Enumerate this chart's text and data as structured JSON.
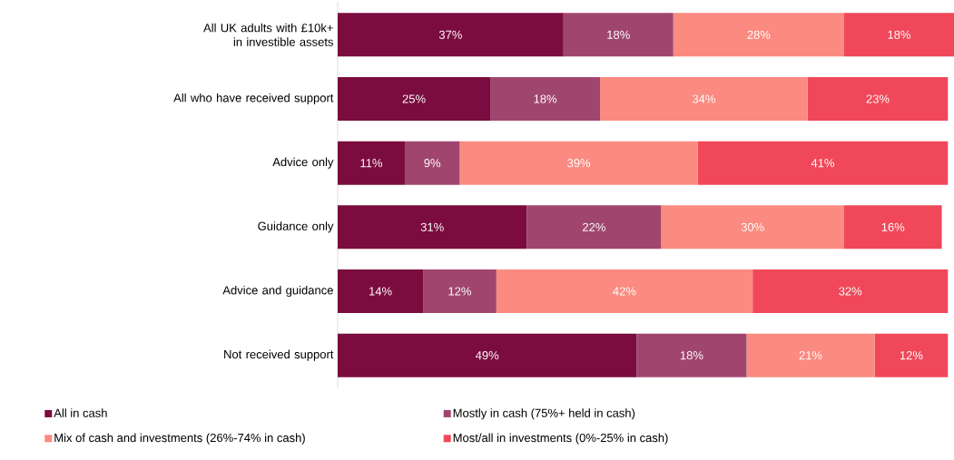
{
  "chart_data": {
    "type": "bar",
    "orientation": "horizontal",
    "stacked": true,
    "categories": [
      "All UK adults with £10k+ in investible assets",
      "All who have received support",
      "Advice only",
      "Guidance only",
      "Advice and guidance",
      "Not received support"
    ],
    "series": [
      {
        "name": "All in cash",
        "color": "#7b0c3f",
        "values": [
          37,
          25,
          11,
          31,
          14,
          49
        ],
        "value_labels": [
          "37%",
          "25%",
          "11%",
          "31%",
          "14%",
          "49%"
        ]
      },
      {
        "name": "Mostly in cash (75%+ held in cash)",
        "color": "#a0466e",
        "values": [
          18,
          18,
          9,
          22,
          12,
          18
        ],
        "value_labels": [
          "18%",
          "18%",
          "9%",
          "22%",
          "12%",
          "18%"
        ]
      },
      {
        "name": "Mix of cash and investments (26%-74% in cash)",
        "color": "#fb8a80",
        "values": [
          28,
          34,
          39,
          30,
          42,
          21
        ],
        "value_labels": [
          "28%",
          "34%",
          "39%",
          "30%",
          "42%",
          "21%"
        ]
      },
      {
        "name": "Most/all in investments (0%-25% in cash)",
        "color": "#f0485a",
        "values": [
          18,
          23,
          41,
          16,
          32,
          12
        ],
        "value_labels": [
          "18%",
          "23%",
          "41%",
          "16%",
          "32%",
          "12%"
        ]
      }
    ],
    "xlim": [
      0,
      101
    ],
    "legend": "bottom"
  }
}
